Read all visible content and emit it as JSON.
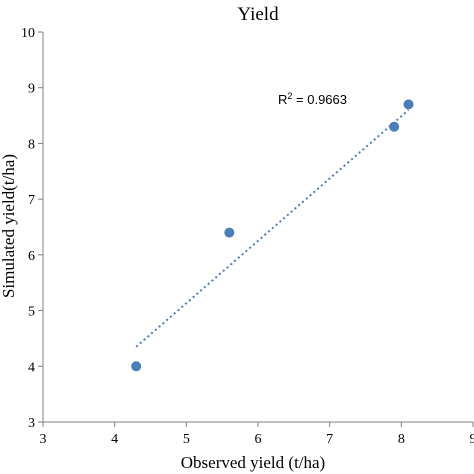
{
  "chart_data": {
    "type": "scatter",
    "title": "Yield",
    "xlabel": "Observed yield (t/ha)",
    "ylabel": "Simulated yield(t/ha)",
    "xlim": [
      3,
      9
    ],
    "ylim": [
      3,
      10
    ],
    "x_ticks": [
      3,
      4,
      5,
      6,
      7,
      8,
      9
    ],
    "y_ticks": [
      3,
      4,
      5,
      6,
      7,
      8,
      9,
      10
    ],
    "x_tick_labels": [
      "3",
      "4",
      "5",
      "6",
      "7",
      "8",
      "9"
    ],
    "y_tick_labels": [
      "3",
      "4",
      "5",
      "6",
      "7",
      "8",
      "9",
      "10"
    ],
    "grid": false,
    "series": [
      {
        "x": [
          4.3,
          5.6,
          7.9,
          8.1
        ],
        "y": [
          4.0,
          6.4,
          8.3,
          8.7
        ],
        "color": "#4a7ebb"
      }
    ],
    "trendline": {
      "type": "linear",
      "x_range": [
        4.3,
        8.1
      ],
      "y_range": [
        4.35,
        8.6
      ],
      "style": "dotted",
      "color": "#4a7ebb",
      "annotation_prefix": "R",
      "annotation_sup": "2",
      "annotation_value": " = 0.9663"
    }
  }
}
